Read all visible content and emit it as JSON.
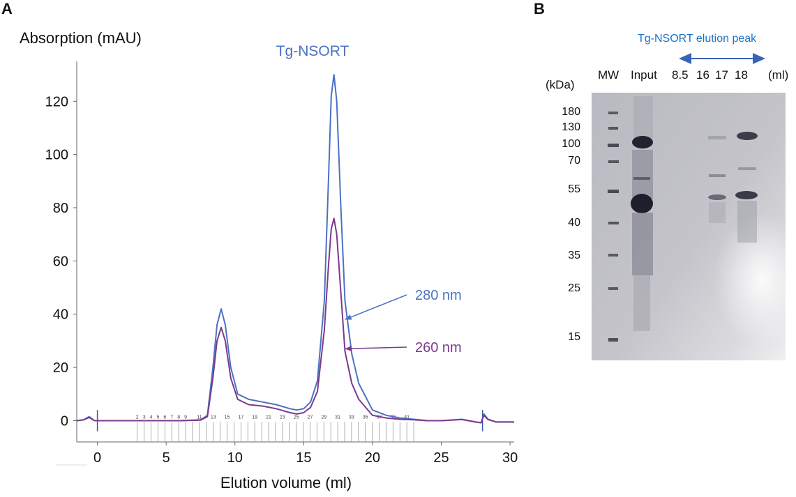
{
  "panels": {
    "a": "A",
    "b": "B"
  },
  "chart_data": {
    "type": "line",
    "title": "Tg-NSORT",
    "ylabel": "Absorption (mAU)",
    "xlabel": "Elution volume (ml)",
    "xlim": [
      -1.5,
      30.3
    ],
    "ylim": [
      -8,
      135
    ],
    "x_ticks": [
      0,
      5,
      10,
      15,
      20,
      25,
      30
    ],
    "y_ticks": [
      0,
      20,
      40,
      60,
      80,
      100,
      120
    ],
    "grid": false,
    "series": [
      {
        "name": "280 nm",
        "color": "#4a72c4",
        "x": [
          -1.5,
          -1.0,
          -0.6,
          -0.2,
          0,
          3,
          6,
          7.5,
          8.0,
          8.4,
          8.7,
          9.0,
          9.3,
          9.7,
          10.2,
          11,
          12,
          13,
          14,
          14.5,
          15,
          15.5,
          16.0,
          16.5,
          16.8,
          17.0,
          17.2,
          17.4,
          17.7,
          18.0,
          18.5,
          19.0,
          19.5,
          20.0,
          21,
          22,
          23,
          24,
          25,
          26.5,
          27.5,
          27.9,
          28.1,
          28.4,
          29,
          30.3
        ],
        "y": [
          0,
          0.3,
          1.5,
          0,
          0,
          0,
          0,
          0.3,
          2,
          20,
          36,
          42,
          36,
          20,
          10,
          8,
          7,
          6,
          4.5,
          4,
          4.5,
          7,
          15,
          45,
          90,
          122,
          130,
          120,
          80,
          45,
          25,
          14,
          9,
          4,
          2,
          1,
          0.5,
          0,
          0,
          0.5,
          -0.5,
          -0.8,
          2.5,
          0.5,
          -0.5,
          -0.5
        ]
      },
      {
        "name": "260 nm",
        "color": "#7b3a8c",
        "x": [
          -1.5,
          -1.0,
          -0.6,
          -0.2,
          0,
          3,
          6,
          7.5,
          8.0,
          8.4,
          8.7,
          9.0,
          9.3,
          9.7,
          10.2,
          11,
          12,
          13,
          14,
          14.5,
          15,
          15.5,
          16.0,
          16.5,
          16.8,
          17.0,
          17.2,
          17.4,
          17.7,
          18.0,
          18.5,
          19.0,
          19.5,
          20.0,
          21,
          22,
          23,
          24,
          25,
          26.5,
          27.5,
          27.9,
          28.1,
          28.4,
          29,
          30.3
        ],
        "y": [
          0,
          0.3,
          1.2,
          0,
          0,
          0,
          0,
          0.2,
          1.5,
          16,
          30,
          35,
          30,
          16,
          8,
          6,
          5.5,
          4.5,
          3,
          2.5,
          3,
          5,
          11,
          34,
          58,
          72,
          76,
          70,
          48,
          26,
          14,
          8,
          5,
          2,
          1,
          0.5,
          0.3,
          0,
          0,
          0.4,
          -0.5,
          -0.8,
          2,
          0.4,
          -0.5,
          -0.5
        ]
      }
    ],
    "annotations": [
      {
        "text": "280 nm",
        "color": "#4a72c4",
        "target_x": 18.0,
        "target_y": 38
      },
      {
        "text": "260 nm",
        "color": "#7b3a8c",
        "target_x": 18.0,
        "target_y": 27
      }
    ],
    "fraction_labels": [
      "2",
      "3",
      "4",
      "5",
      "6",
      "7",
      "8",
      "9",
      "11",
      "13",
      "15",
      "17",
      "19",
      "21",
      "23",
      "25",
      "27",
      "29",
      "31",
      "33",
      "35",
      "37",
      "39",
      "41"
    ],
    "fraction_range": [
      2.9,
      23.0
    ],
    "injection_markers": [
      0,
      28.0
    ]
  },
  "gel": {
    "title": "Tg-NSORT elution peak",
    "kda_label": "(kDa)",
    "ml_label": "(ml)",
    "lanes": [
      "MW",
      "Input",
      "8.5",
      "16",
      "17",
      "18"
    ],
    "mw_markers": [
      "180",
      "130",
      "100",
      "70",
      "55",
      "40",
      "35",
      "25",
      "15"
    ],
    "arrow_color": "#3a63b8"
  }
}
